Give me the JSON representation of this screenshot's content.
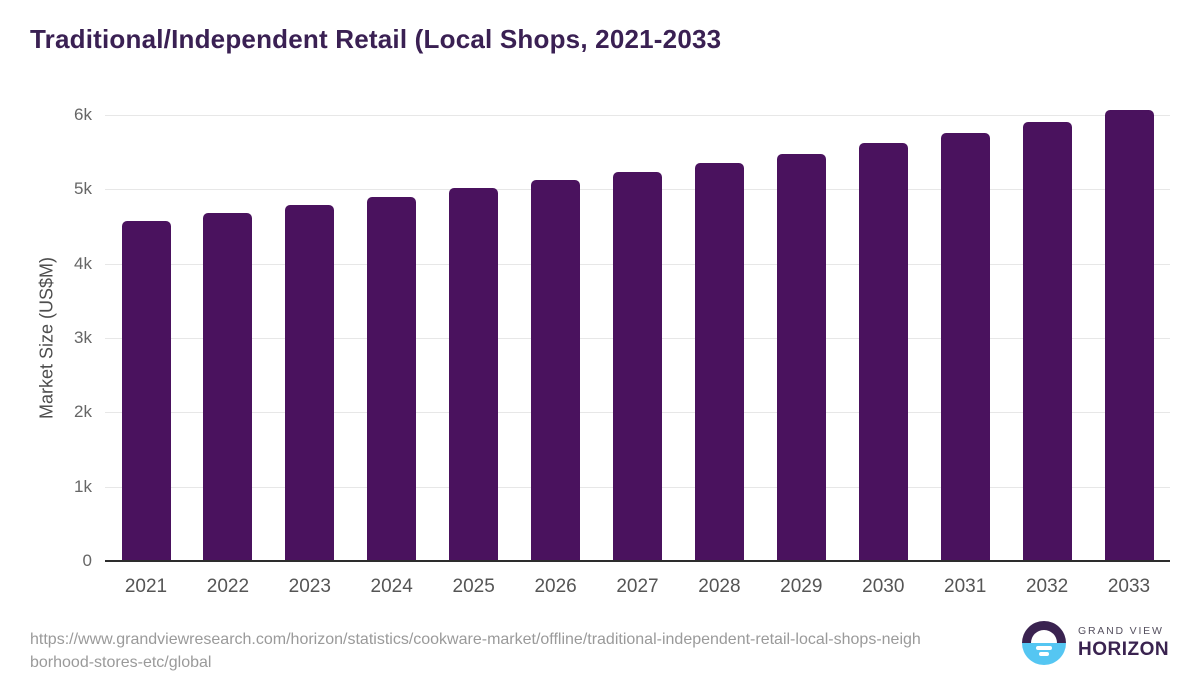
{
  "page_title": "Traditional/Independent Retail (Local Shops, 2021-2033",
  "chart_data": {
    "type": "bar",
    "title": "Traditional/Independent Retail (Local Shops, 2021-2033",
    "categories": [
      "2021",
      "2022",
      "2023",
      "2024",
      "2025",
      "2026",
      "2027",
      "2028",
      "2029",
      "2030",
      "2031",
      "2032",
      "2033"
    ],
    "values": [
      4560,
      4670,
      4780,
      4890,
      5000,
      5110,
      5220,
      5335,
      5460,
      5610,
      5750,
      5895,
      6060
    ],
    "xlabel": "",
    "ylabel": "Market Size (US$M)",
    "ylim": [
      0,
      6000
    ],
    "ytick_values": [
      0,
      1000,
      2000,
      3000,
      4000,
      5000,
      6000
    ],
    "ytick_labels": [
      "0",
      "1k",
      "2k",
      "3k",
      "4k",
      "5k",
      "6k"
    ],
    "grid": "horizontal",
    "legend": "none",
    "bar_color": "#4a125e"
  },
  "footer": {
    "source_url_lines": [
      "https://www.grandviewresearch.com/horizon/statistics/cookware-market/offline/traditional-independent-retail-local-shops-neigh",
      "borhood-stores-etc/global"
    ],
    "logo": {
      "brand_line1": "GRAND VIEW",
      "brand_line2": "HORIZON"
    }
  },
  "colors": {
    "bar": "#4a125e",
    "title": "#3a2053",
    "ytick_text": "#666666",
    "xtick_text": "#555555",
    "ylabel_text": "#4d4d4d",
    "gridline": "#e7e7e7",
    "axis_line": "#2d2d2d",
    "url_text": "#9a9a9a",
    "logo_purple": "#3a2350",
    "logo_cyan": "#55c6f2"
  }
}
